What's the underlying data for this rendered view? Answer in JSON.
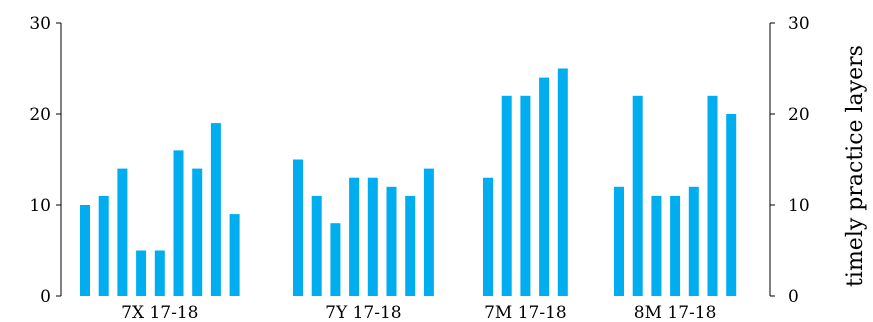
{
  "chart_data": {
    "type": "bar",
    "groups": [
      {
        "label": "7X 17-18",
        "values": [
          10,
          11,
          14,
          5,
          5,
          16,
          14,
          19,
          9
        ]
      },
      {
        "label": "7Y 17-18",
        "values": [
          15,
          11,
          8,
          13,
          13,
          12,
          11,
          14
        ]
      },
      {
        "label": "7M 17-18",
        "values": [
          13,
          22,
          22,
          24,
          25
        ]
      },
      {
        "label": "8M 17-18",
        "values": [
          12,
          22,
          11,
          11,
          12,
          22,
          20
        ]
      }
    ],
    "ylim": [
      0,
      30
    ],
    "yticks": [
      0,
      10,
      20,
      30
    ],
    "ylabel_right": "timely practice layers",
    "bar_color": "#00aeef",
    "grid": false
  }
}
